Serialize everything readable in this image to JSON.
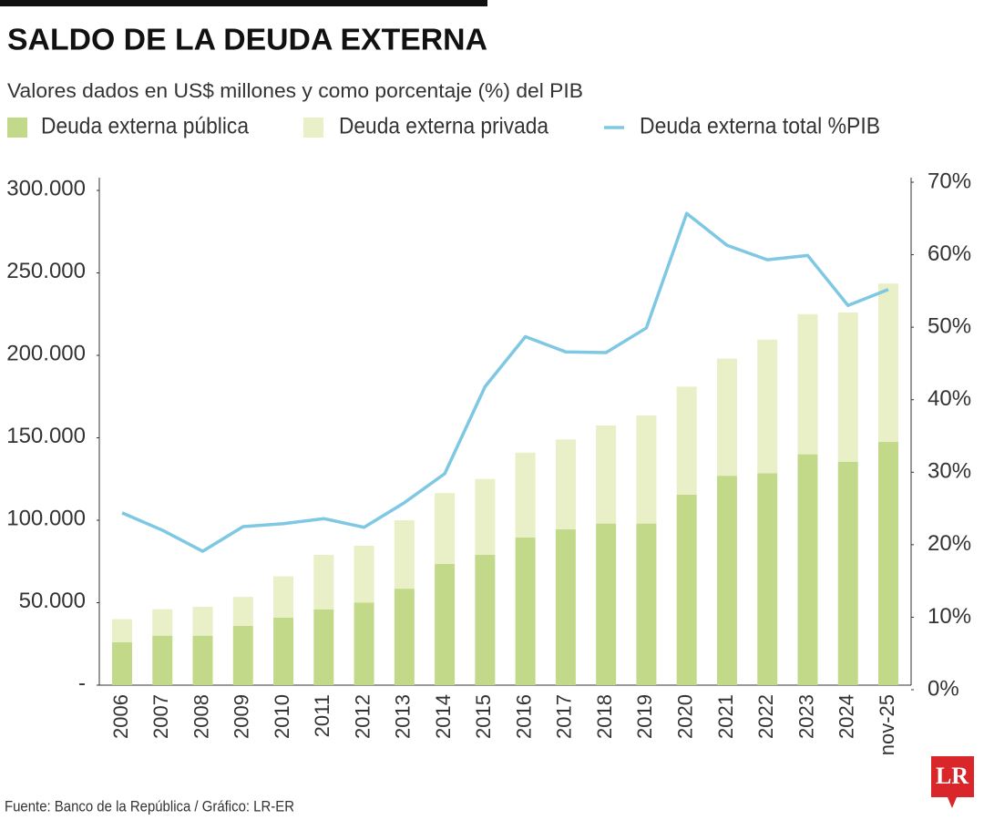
{
  "chart_data": {
    "type": "bar-line",
    "title": "SALDO DE LA DEUDA EXTERNA",
    "subtitle": "Valores dados en US$ millones y como porcentaje (%) del PIB",
    "source": "Fuente: Banco de la República / Gráfico: LR-ER",
    "logo": "LR",
    "categories": [
      "2006",
      "2007",
      "2008",
      "2009",
      "2010",
      "2011",
      "2012",
      "2013",
      "2014",
      "2015",
      "2016",
      "2017",
      "2018",
      "2019",
      "2020",
      "2021",
      "2022",
      "2023",
      "2024",
      "nov-25"
    ],
    "series": [
      {
        "name": "Deuda externa pública",
        "color": "#c3d98a",
        "stack": true,
        "values": [
          26000,
          30000,
          30000,
          36000,
          41000,
          46000,
          50000,
          58500,
          73500,
          79000,
          89500,
          94500,
          98000,
          98000,
          115500,
          127000,
          128500,
          140000,
          135500,
          147500
        ]
      },
      {
        "name": "Deuda externa privada",
        "color": "#e9efc7",
        "stack": true,
        "values": [
          14000,
          16000,
          17500,
          17500,
          25000,
          33000,
          34500,
          41500,
          43000,
          46000,
          51500,
          54500,
          59500,
          65500,
          65500,
          71000,
          81000,
          85000,
          90500,
          96000
        ]
      },
      {
        "name": "Deuda externa total %PIB",
        "color": "#7ec8e3",
        "axis": "y2",
        "line": true,
        "values": [
          24.4,
          22,
          19.1,
          22.5,
          22.9,
          23.6,
          22.4,
          25.8,
          29.8,
          41.8,
          48.7,
          46.6,
          46.5,
          49.9,
          65.7,
          61.3,
          59.3,
          59.9,
          53,
          55.2
        ]
      }
    ],
    "ylim": [
      0,
      300000
    ],
    "yticks": [
      {
        "value": 0,
        "label": "-"
      },
      {
        "value": 50000,
        "label": "50.000"
      },
      {
        "value": 100000,
        "label": "100.000"
      },
      {
        "value": 150000,
        "label": "150.000"
      },
      {
        "value": 200000,
        "label": "200.000"
      },
      {
        "value": 250000,
        "label": "250.000"
      },
      {
        "value": 300000,
        "label": "300.000"
      }
    ],
    "y2lim": [
      0,
      70
    ],
    "y2ticks": [
      {
        "value": 0,
        "label": "0%"
      },
      {
        "value": 10,
        "label": "10%"
      },
      {
        "value": 20,
        "label": "20%"
      },
      {
        "value": 30,
        "label": "30%"
      },
      {
        "value": 40,
        "label": "40%"
      },
      {
        "value": 50,
        "label": "50%"
      },
      {
        "value": 60,
        "label": "60%"
      },
      {
        "value": 70,
        "label": "70%"
      }
    ]
  }
}
